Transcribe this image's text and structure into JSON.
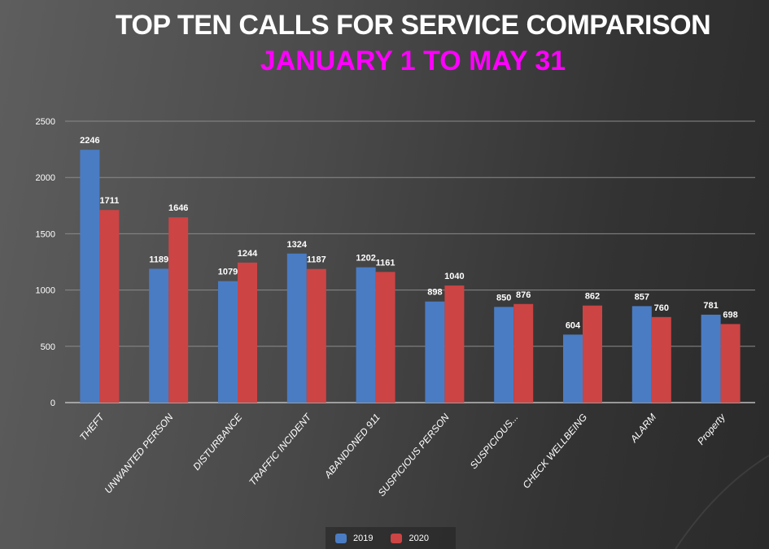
{
  "chart_data": {
    "type": "bar",
    "title": "TOP TEN CALLS FOR SERVICE COMPARISON",
    "subtitle": "JANUARY 1 TO MAY 31",
    "categories": [
      "THEFT",
      "UNWANTED PERSON",
      "DISTURBANCE",
      "TRAFFIC INCIDENT",
      "ABANDONED 911",
      "SUSPICIOUS PERSON",
      "SUSPICIOUS...",
      "CHECK WELLBEING",
      "ALARM",
      "Property"
    ],
    "series": [
      {
        "name": "2019",
        "color": "#4a7cc4",
        "values": [
          2246,
          1189,
          1079,
          1324,
          1202,
          898,
          850,
          604,
          857,
          781
        ]
      },
      {
        "name": "2020",
        "color": "#cc4444",
        "values": [
          1711,
          1646,
          1244,
          1187,
          1161,
          1040,
          876,
          862,
          760,
          698
        ]
      }
    ],
    "yticks": [
      0,
      500,
      1000,
      1500,
      2000,
      2500
    ],
    "ylim": [
      0,
      2500
    ],
    "grid": true,
    "legend": "bottom",
    "xlabel": "",
    "ylabel": ""
  }
}
